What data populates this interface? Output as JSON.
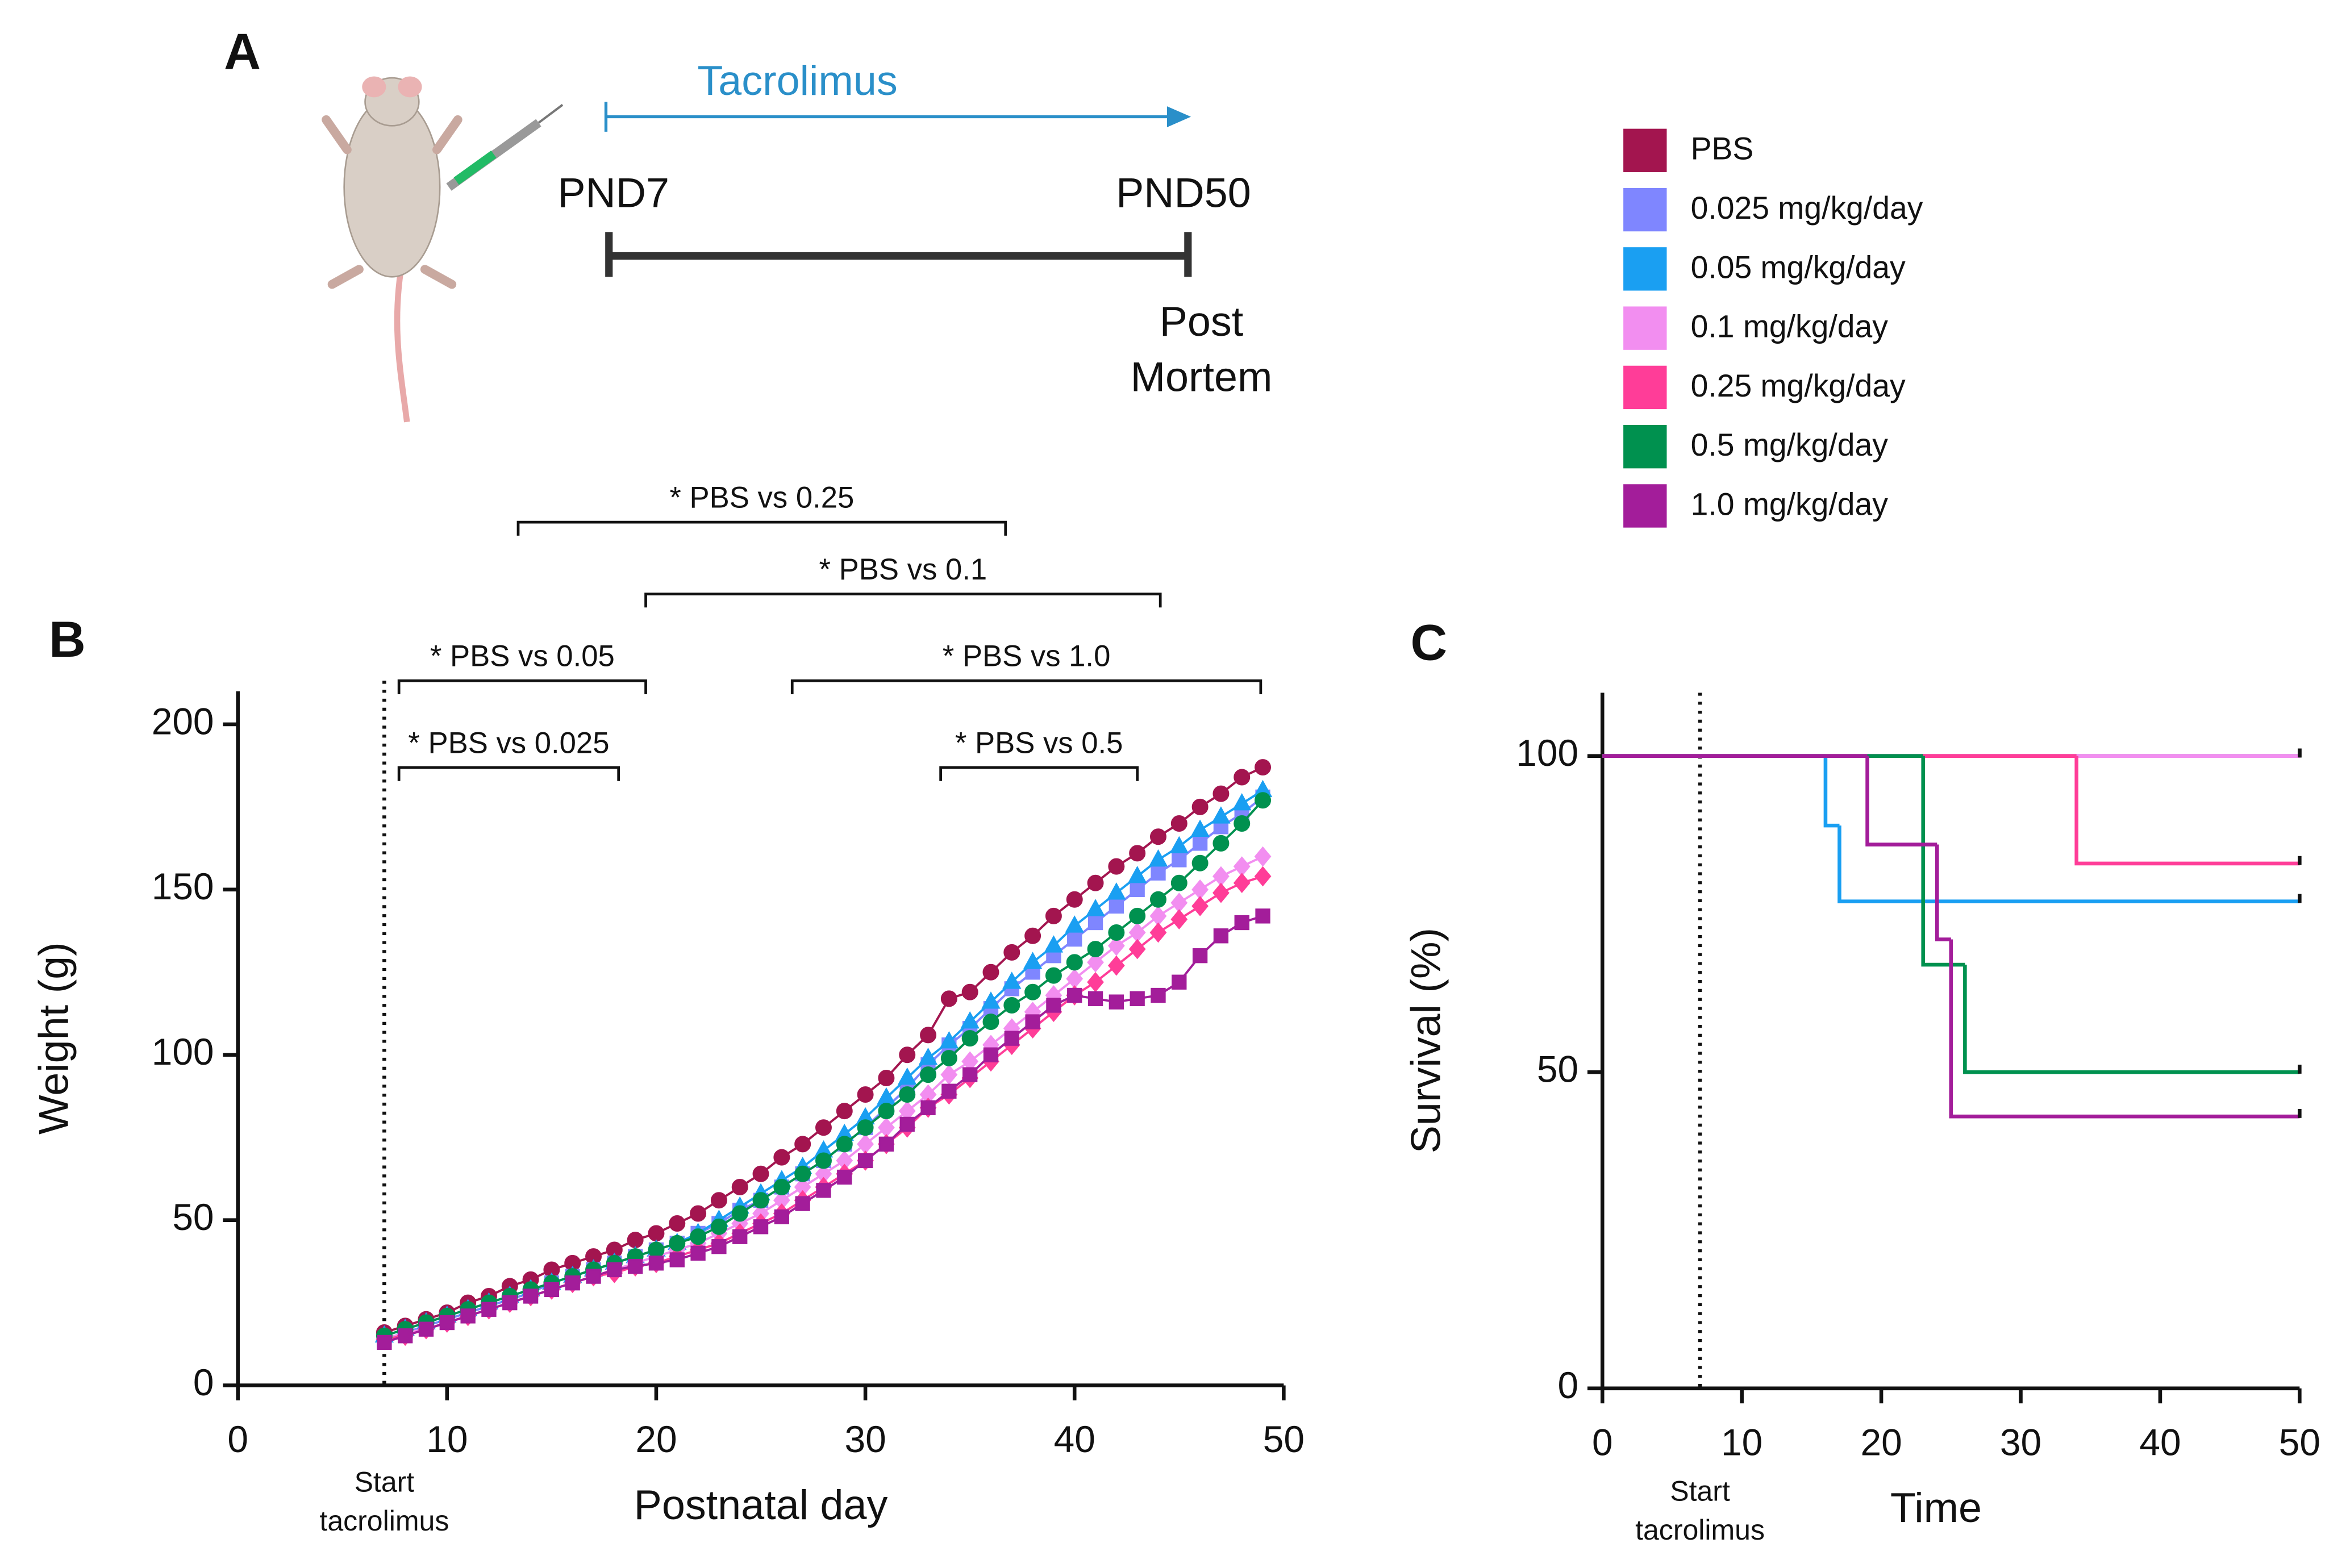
{
  "panel_a": {
    "label": "A",
    "drug": "Tacrolimus",
    "start": "PND7",
    "end": "PND50",
    "outcome": [
      "Post",
      "Mortem"
    ]
  },
  "chart_data": [
    {
      "type": "line",
      "panel": "B",
      "x_label": "Postnatal day",
      "y_label": "Weight (g)",
      "xlim": [
        0,
        50
      ],
      "xticks": [
        0,
        10,
        20,
        30,
        40,
        50
      ],
      "ylim": [
        0,
        210
      ],
      "yticks": [
        0,
        50,
        100,
        150,
        200
      ],
      "vline": 7,
      "vline_label": [
        "Start",
        "tacrolimus"
      ],
      "x": [
        7,
        8,
        9,
        10,
        11,
        12,
        13,
        14,
        15,
        16,
        17,
        18,
        19,
        20,
        21,
        22,
        23,
        24,
        25,
        26,
        27,
        28,
        29,
        30,
        31,
        32,
        33,
        34,
        35,
        36,
        37,
        38,
        39,
        40,
        41,
        42,
        43,
        44,
        45,
        46,
        47,
        48,
        49
      ],
      "series": [
        {
          "name": "PBS",
          "color": "#a3154f",
          "marker": "circle",
          "values": [
            16,
            18,
            20,
            22,
            25,
            27,
            30,
            32,
            35,
            37,
            39,
            41,
            44,
            46,
            49,
            52,
            56,
            60,
            64,
            69,
            73,
            78,
            83,
            88,
            93,
            100,
            106,
            117,
            119,
            125,
            131,
            136,
            142,
            147,
            152,
            157,
            161,
            166,
            170,
            175,
            179,
            184,
            187
          ]
        },
        {
          "name": "0.025 mg/kg/day",
          "color": "#7f86ff",
          "marker": "square",
          "values": [
            14,
            16,
            18,
            20,
            22,
            24,
            26,
            28,
            31,
            33,
            35,
            37,
            39,
            41,
            43,
            46,
            49,
            53,
            56,
            60,
            64,
            68,
            73,
            78,
            84,
            90,
            97,
            103,
            108,
            114,
            120,
            125,
            130,
            135,
            140,
            145,
            150,
            155,
            159,
            164,
            169,
            173,
            178
          ]
        },
        {
          "name": "0.05 mg/kg/day",
          "color": "#1a9ff2",
          "marker": "triangle",
          "values": [
            15,
            17,
            19,
            21,
            23,
            25,
            27,
            29,
            31,
            33,
            35,
            37,
            39,
            41,
            43,
            46,
            50,
            54,
            58,
            62,
            66,
            71,
            76,
            81,
            87,
            93,
            99,
            104,
            110,
            116,
            122,
            128,
            133,
            139,
            144,
            149,
            154,
            159,
            163,
            168,
            172,
            176,
            180
          ]
        },
        {
          "name": "0.1 mg/kg/day",
          "color": "#f28ef0",
          "marker": "diamond",
          "values": [
            14,
            16,
            17,
            19,
            21,
            23,
            25,
            27,
            29,
            31,
            33,
            35,
            37,
            39,
            41,
            43,
            46,
            49,
            52,
            56,
            60,
            64,
            68,
            73,
            78,
            83,
            88,
            94,
            98,
            103,
            108,
            113,
            118,
            123,
            128,
            133,
            137,
            142,
            146,
            150,
            154,
            157,
            160
          ]
        },
        {
          "name": "0.25 mg/kg/day",
          "color": "#ff3d98",
          "marker": "diamond",
          "values": [
            14,
            15,
            17,
            19,
            21,
            23,
            25,
            27,
            29,
            31,
            33,
            34,
            36,
            37,
            39,
            41,
            43,
            46,
            49,
            52,
            56,
            60,
            64,
            68,
            73,
            78,
            84,
            88,
            93,
            98,
            103,
            108,
            113,
            118,
            122,
            127,
            132,
            137,
            141,
            145,
            149,
            152,
            154
          ]
        },
        {
          "name": "0.5 mg/kg/day",
          "color": "#00914f",
          "marker": "circle",
          "values": [
            15,
            17,
            19,
            21,
            23,
            25,
            27,
            29,
            31,
            33,
            35,
            37,
            39,
            41,
            43,
            45,
            48,
            52,
            56,
            60,
            64,
            68,
            73,
            78,
            83,
            88,
            94,
            99,
            105,
            110,
            115,
            119,
            124,
            128,
            132,
            137,
            142,
            147,
            152,
            158,
            164,
            170,
            177
          ]
        },
        {
          "name": "1.0 mg/kg/day",
          "color": "#a31d9a",
          "marker": "square",
          "values": [
            13,
            15,
            17,
            19,
            21,
            23,
            25,
            27,
            29,
            31,
            33,
            35,
            36,
            37,
            38,
            40,
            42,
            45,
            48,
            51,
            55,
            59,
            63,
            68,
            73,
            79,
            84,
            89,
            94,
            100,
            105,
            110,
            115,
            118,
            117,
            116,
            117,
            118,
            122,
            130,
            136,
            140,
            142
          ]
        }
      ],
      "brackets": [
        {
          "text": "* PBS vs 0.25",
          "x": [
            13.4,
            36.7
          ]
        },
        {
          "text": "* PBS vs 0.1",
          "x": [
            19.5,
            44.1
          ]
        },
        {
          "text": "* PBS vs 0.05",
          "x": [
            7.7,
            19.5
          ]
        },
        {
          "text": "* PBS vs 1.0",
          "x": [
            26.5,
            48.9
          ]
        },
        {
          "text": "* PBS vs 0.025",
          "x": [
            7.7,
            18.2
          ]
        },
        {
          "text": "* PBS vs 0.5",
          "x": [
            33.6,
            43
          ]
        }
      ]
    },
    {
      "type": "step",
      "panel": "C",
      "x_label": "Time",
      "y_label": "Survival (%)",
      "xlim": [
        0,
        50
      ],
      "xticks": [
        0,
        10,
        20,
        30,
        40,
        50
      ],
      "ylim": [
        0,
        110
      ],
      "yticks": [
        0,
        50,
        100
      ],
      "vline": 7,
      "vline_label": [
        "Start",
        "tacrolimus"
      ],
      "series": [
        {
          "name": "PBS",
          "color": "#a3154f",
          "x": [
            0,
            50
          ],
          "values": [
            100,
            100
          ]
        },
        {
          "name": "0.025 mg/kg/day",
          "color": "#7f86ff",
          "x": [
            0,
            50
          ],
          "values": [
            100,
            100
          ]
        },
        {
          "name": "0.1 mg/kg/day",
          "color": "#f28ef0",
          "x": [
            0,
            50
          ],
          "values": [
            100,
            100
          ]
        },
        {
          "name": "0.05 mg/kg/day",
          "color": "#1a9ff2",
          "x": [
            0,
            16,
            17,
            50
          ],
          "values": [
            100,
            89,
            77,
            77
          ]
        },
        {
          "name": "0.25 mg/kg/day",
          "color": "#ff3d98",
          "x": [
            0,
            34,
            50
          ],
          "values": [
            100,
            83,
            83
          ]
        },
        {
          "name": "0.5 mg/kg/day",
          "color": "#00914f",
          "x": [
            0,
            23,
            26,
            50
          ],
          "values": [
            100,
            67,
            50,
            50
          ]
        },
        {
          "name": "1.0 mg/kg/day",
          "color": "#a31d9a",
          "x": [
            0,
            19,
            24,
            25,
            50
          ],
          "values": [
            100,
            86,
            71,
            43,
            43
          ]
        }
      ]
    }
  ]
}
